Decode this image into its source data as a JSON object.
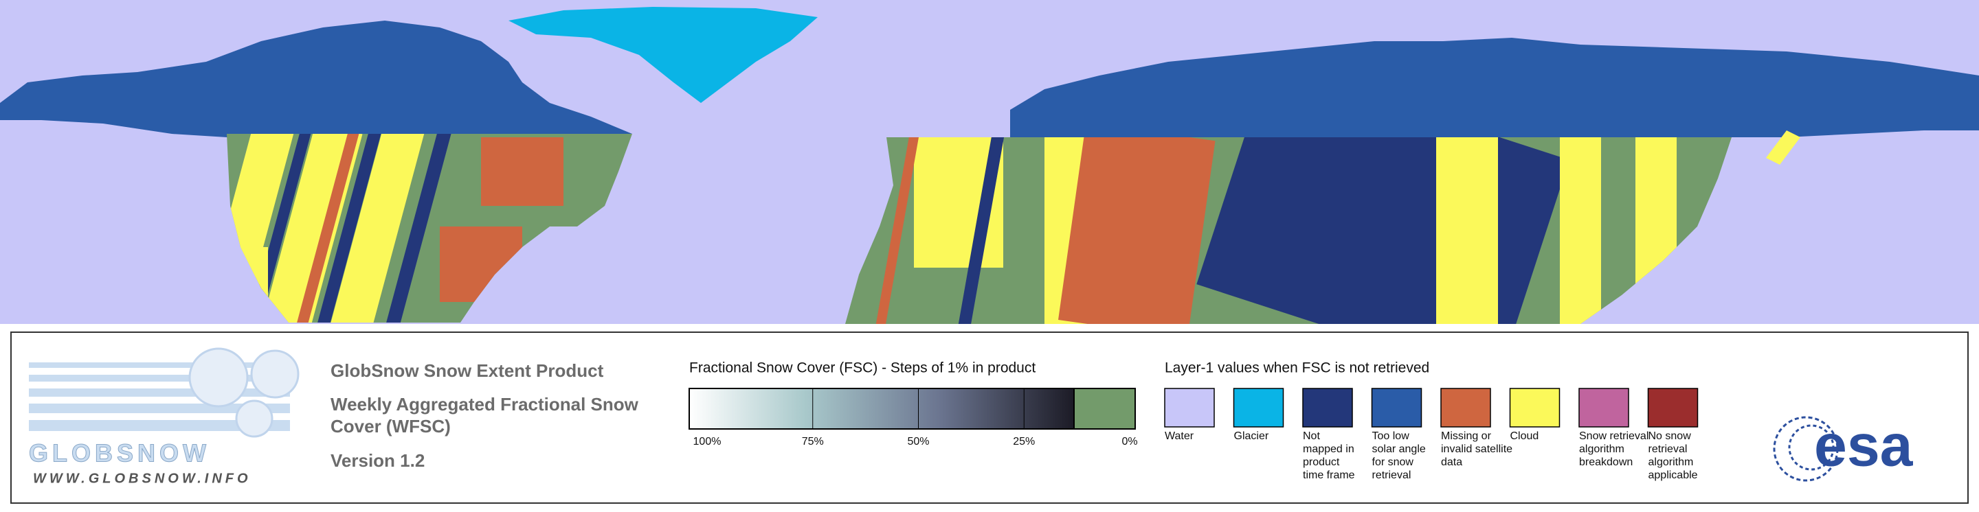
{
  "header": {
    "product": "GlobSnow Snow Extent Product",
    "subtitle_lines": [
      "Weekly Aggregated Fractional Snow",
      "Cover (WFSC)"
    ],
    "version": "Version 1.2"
  },
  "logo": {
    "name": "GLOBSNOW",
    "url": "WWW.GLOBSNOW.INFO",
    "agency": "esa"
  },
  "fsc_legend": {
    "title": "Fractional Snow Cover (FSC) - Steps of 1% in product",
    "ticks": [
      "100%",
      "75%",
      "50%",
      "25%",
      "0%"
    ]
  },
  "layer_legend": {
    "title": "Layer-1 values when FSC is not retrieved",
    "items": [
      {
        "color": "#c8c6f9",
        "label": [
          "Water"
        ]
      },
      {
        "color": "#0ab4e6",
        "label": [
          "Glacier"
        ]
      },
      {
        "color": "#23377a",
        "label": [
          "Not",
          "mapped in",
          "product",
          "time frame"
        ]
      },
      {
        "color": "#2a5ca8",
        "label": [
          "Too low",
          "solar angle",
          "for snow",
          "retrieval"
        ]
      },
      {
        "color": "#cf6640",
        "label": [
          "Missing or",
          "invalid satellite",
          "data"
        ]
      },
      {
        "color": "#fbf95a",
        "label": [
          "Cloud"
        ]
      },
      {
        "color": "#c0649e",
        "label": [
          "Snow retrieval",
          "algorithm",
          "breakdown"
        ]
      },
      {
        "color": "#9b2d2d",
        "label": [
          "No snow",
          "retrieval",
          "algorithm",
          "applicable"
        ]
      }
    ]
  }
}
